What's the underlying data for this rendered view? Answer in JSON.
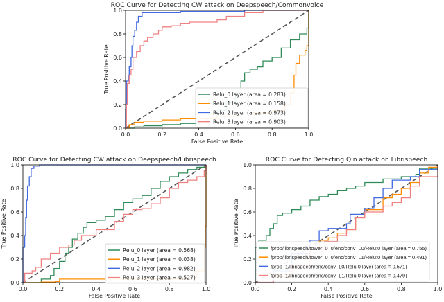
{
  "chart_data": [
    {
      "type": "line",
      "title": "ROC Curve for Detecting CW attack on Deepspeech/Commonvoice",
      "xlabel": "False Positive Rate",
      "ylabel": "True Positive Rate",
      "xlim": [
        0,
        1
      ],
      "ylim": [
        0,
        1
      ],
      "xticks": [
        "0.0",
        "0.2",
        "0.4",
        "0.6",
        "0.8",
        "1.0"
      ],
      "yticks": [
        "0.0",
        "0.2",
        "0.4",
        "0.6",
        "0.8",
        "1.0"
      ],
      "legend_position": "bottom-right",
      "series": [
        {
          "name": "Relu_0 layer (area = 0.283)",
          "color": "#2e8b57",
          "points": [
            [
              0,
              0
            ],
            [
              0.05,
              0.01
            ],
            [
              0.1,
              0.02
            ],
            [
              0.2,
              0.03
            ],
            [
              0.3,
              0.04
            ],
            [
              0.4,
              0.06
            ],
            [
              0.45,
              0.08
            ],
            [
              0.5,
              0.15
            ],
            [
              0.55,
              0.22
            ],
            [
              0.6,
              0.3
            ],
            [
              0.63,
              0.4
            ],
            [
              0.65,
              0.47
            ],
            [
              0.68,
              0.5
            ],
            [
              0.72,
              0.52
            ],
            [
              0.75,
              0.57
            ],
            [
              0.8,
              0.6
            ],
            [
              0.85,
              0.68
            ],
            [
              0.9,
              0.75
            ],
            [
              0.95,
              0.8
            ],
            [
              0.99,
              0.85
            ],
            [
              1,
              1
            ]
          ]
        },
        {
          "name": "Relu_1 layer (area = 0.158)",
          "color": "#ff8c00",
          "points": [
            [
              0,
              0
            ],
            [
              0.02,
              0.03
            ],
            [
              0.05,
              0.05
            ],
            [
              0.1,
              0.06
            ],
            [
              0.2,
              0.07
            ],
            [
              0.3,
              0.08
            ],
            [
              0.5,
              0.1
            ],
            [
              0.6,
              0.12
            ],
            [
              0.7,
              0.13
            ],
            [
              0.8,
              0.15
            ],
            [
              0.87,
              0.2
            ],
            [
              0.9,
              0.3
            ],
            [
              0.92,
              0.45
            ],
            [
              0.93,
              0.55
            ],
            [
              0.95,
              0.62
            ],
            [
              0.98,
              0.66
            ],
            [
              0.99,
              0.7
            ],
            [
              1,
              1
            ]
          ]
        },
        {
          "name": "Relu_2 layer (area = 0.973)",
          "color": "#4169e1",
          "points": [
            [
              0,
              0
            ],
            [
              0,
              0.16
            ],
            [
              0.005,
              0.4
            ],
            [
              0.015,
              0.45
            ],
            [
              0.02,
              0.52
            ],
            [
              0.03,
              0.6
            ],
            [
              0.035,
              0.7
            ],
            [
              0.04,
              0.78
            ],
            [
              0.05,
              0.83
            ],
            [
              0.06,
              0.9
            ],
            [
              0.07,
              0.95
            ],
            [
              0.09,
              0.98
            ],
            [
              0.3,
              0.99
            ],
            [
              0.6,
              0.99
            ],
            [
              0.65,
              1
            ],
            [
              1,
              1
            ]
          ]
        },
        {
          "name": "Relu_3 layer (area = 0.903)",
          "color": "#f08080",
          "points": [
            [
              0,
              0
            ],
            [
              0.005,
              0.2
            ],
            [
              0.01,
              0.38
            ],
            [
              0.02,
              0.45
            ],
            [
              0.03,
              0.5
            ],
            [
              0.04,
              0.6
            ],
            [
              0.06,
              0.65
            ],
            [
              0.08,
              0.7
            ],
            [
              0.1,
              0.74
            ],
            [
              0.12,
              0.77
            ],
            [
              0.15,
              0.8
            ],
            [
              0.18,
              0.83
            ],
            [
              0.2,
              0.86
            ],
            [
              0.25,
              0.87
            ],
            [
              0.3,
              0.89
            ],
            [
              0.35,
              0.9
            ],
            [
              0.5,
              0.92
            ],
            [
              0.55,
              0.95
            ],
            [
              0.65,
              0.98
            ],
            [
              0.75,
              1
            ],
            [
              1,
              1
            ]
          ]
        }
      ]
    },
    {
      "type": "line",
      "title": "ROC Curve for Detecting CW attack on Deepspeech/Librispeech",
      "xlabel": "False Positive Rate",
      "ylabel": "True Positive Rate",
      "xlim": [
        0,
        1
      ],
      "ylim": [
        0,
        1
      ],
      "xticks": [
        "0.0",
        "0.2",
        "0.4",
        "0.6",
        "0.8",
        "1.0"
      ],
      "yticks": [
        "0.0",
        "0.2",
        "0.4",
        "0.6",
        "0.8",
        "1.0"
      ],
      "legend_position": "bottom-right",
      "series": [
        {
          "name": "Relu_0 layer (area = 0.568)",
          "color": "#2e8b57",
          "points": [
            [
              0,
              0
            ],
            [
              0.07,
              0
            ],
            [
              0.1,
              0.03
            ],
            [
              0.15,
              0.06
            ],
            [
              0.17,
              0.12
            ],
            [
              0.2,
              0.18
            ],
            [
              0.23,
              0.25
            ],
            [
              0.25,
              0.3
            ],
            [
              0.27,
              0.37
            ],
            [
              0.3,
              0.42
            ],
            [
              0.33,
              0.47
            ],
            [
              0.35,
              0.51
            ],
            [
              0.4,
              0.53
            ],
            [
              0.45,
              0.56
            ],
            [
              0.5,
              0.62
            ],
            [
              0.55,
              0.68
            ],
            [
              0.6,
              0.71
            ],
            [
              0.65,
              0.74
            ],
            [
              0.7,
              0.8
            ],
            [
              0.75,
              0.86
            ],
            [
              0.8,
              0.9
            ],
            [
              0.85,
              0.93
            ],
            [
              0.9,
              0.96
            ],
            [
              0.95,
              0.98
            ],
            [
              1,
              1
            ]
          ]
        },
        {
          "name": "Relu_1 layer (area = 0.038)",
          "color": "#ff8c00",
          "points": [
            [
              0,
              0
            ],
            [
              0.1,
              0.005
            ],
            [
              0.18,
              0.01
            ],
            [
              0.2,
              0.03
            ],
            [
              0.5,
              0.03
            ],
            [
              0.9,
              0.04
            ],
            [
              0.95,
              0.1
            ],
            [
              0.99,
              0.3
            ],
            [
              0.995,
              0.48
            ],
            [
              1,
              1
            ]
          ]
        },
        {
          "name": "Relu_2 layer (area = 0.982)",
          "color": "#4169e1",
          "points": [
            [
              0,
              0
            ],
            [
              0,
              0.3
            ],
            [
              0.01,
              0.4
            ],
            [
              0.015,
              0.55
            ],
            [
              0.02,
              0.7
            ],
            [
              0.025,
              0.82
            ],
            [
              0.035,
              0.9
            ],
            [
              0.045,
              0.97
            ],
            [
              0.06,
              0.99
            ],
            [
              0.09,
              1
            ],
            [
              1,
              1
            ]
          ]
        },
        {
          "name": "Relu_3 layer (area = 0.527)",
          "color": "#f08080",
          "points": [
            [
              0,
              0
            ],
            [
              0.01,
              0.08
            ],
            [
              0.05,
              0.1
            ],
            [
              0.07,
              0.13
            ],
            [
              0.1,
              0.2
            ],
            [
              0.15,
              0.25
            ],
            [
              0.2,
              0.3
            ],
            [
              0.25,
              0.32
            ],
            [
              0.28,
              0.36
            ],
            [
              0.32,
              0.4
            ],
            [
              0.4,
              0.45
            ],
            [
              0.5,
              0.52
            ],
            [
              0.55,
              0.58
            ],
            [
              0.6,
              0.62
            ],
            [
              0.65,
              0.63
            ],
            [
              0.7,
              0.67
            ],
            [
              0.75,
              0.72
            ],
            [
              0.8,
              0.8
            ],
            [
              0.85,
              0.85
            ],
            [
              0.9,
              0.87
            ],
            [
              0.95,
              0.9
            ],
            [
              0.99,
              0.95
            ],
            [
              1,
              1
            ]
          ]
        }
      ]
    },
    {
      "type": "line",
      "title": "ROC Curve for Detecting Qin attack on Librispeech",
      "xlabel": "False Positive Rate",
      "ylabel": "True Positive Rate",
      "xlim": [
        0,
        1
      ],
      "ylim": [
        0,
        1
      ],
      "xticks": [
        "0.0",
        "0.2",
        "0.4",
        "0.6",
        "0.8",
        "1.0"
      ],
      "yticks": [
        "0.0",
        "0.2",
        "0.4",
        "0.6",
        "0.8",
        "1.0"
      ],
      "legend_position": "bottom",
      "series": [
        {
          "name": "fprop/librispeech/tower_0_0/enc/conv_L0/Relu:0 layer (area = 0.755)",
          "color": "#2e8b57",
          "points": [
            [
              0,
              0
            ],
            [
              0,
              0.3
            ],
            [
              0.02,
              0.36
            ],
            [
              0.06,
              0.4
            ],
            [
              0.08,
              0.46
            ],
            [
              0.1,
              0.5
            ],
            [
              0.12,
              0.57
            ],
            [
              0.15,
              0.59
            ],
            [
              0.2,
              0.62
            ],
            [
              0.25,
              0.65
            ],
            [
              0.3,
              0.7
            ],
            [
              0.35,
              0.73
            ],
            [
              0.4,
              0.75
            ],
            [
              0.45,
              0.78
            ],
            [
              0.5,
              0.8
            ],
            [
              0.55,
              0.82
            ],
            [
              0.6,
              0.85
            ],
            [
              0.7,
              0.88
            ],
            [
              0.8,
              0.9
            ],
            [
              0.88,
              0.92
            ],
            [
              0.9,
              0.97
            ],
            [
              1,
              1
            ]
          ]
        },
        {
          "name": "fprop/librispeech/tower_0_0/enc/conv_L1/Relu:0 layer (area = 0.491)",
          "color": "#ff8c00",
          "points": [
            [
              0,
              0
            ],
            [
              0.1,
              0.05
            ],
            [
              0.2,
              0.15
            ],
            [
              0.3,
              0.28
            ],
            [
              0.35,
              0.36
            ],
            [
              0.4,
              0.38
            ],
            [
              0.45,
              0.42
            ],
            [
              0.5,
              0.45
            ],
            [
              0.55,
              0.55
            ],
            [
              0.6,
              0.62
            ],
            [
              0.7,
              0.72
            ],
            [
              0.75,
              0.75
            ],
            [
              0.8,
              0.8
            ],
            [
              0.85,
              0.85
            ],
            [
              0.9,
              0.93
            ],
            [
              0.95,
              0.98
            ],
            [
              1,
              1
            ]
          ]
        },
        {
          "name": "fprop_1/librispeech/enc/conv_L0/Relu:0 layer (area = 0.571)",
          "color": "#4169e1",
          "points": [
            [
              0,
              0
            ],
            [
              0.1,
              0.1
            ],
            [
              0.2,
              0.25
            ],
            [
              0.3,
              0.36
            ],
            [
              0.35,
              0.44
            ],
            [
              0.4,
              0.46
            ],
            [
              0.5,
              0.5
            ],
            [
              0.52,
              0.58
            ],
            [
              0.6,
              0.63
            ],
            [
              0.65,
              0.72
            ],
            [
              0.7,
              0.8
            ],
            [
              0.75,
              0.87
            ],
            [
              0.85,
              0.9
            ],
            [
              0.9,
              0.96
            ],
            [
              1,
              1
            ]
          ]
        },
        {
          "name": "fprop_1/librispeech/enc/conv_L1/Relu:0 layer (area = 0.479)",
          "color": "#f08080",
          "points": [
            [
              0,
              0
            ],
            [
              0.1,
              0.07
            ],
            [
              0.2,
              0.15
            ],
            [
              0.3,
              0.28
            ],
            [
              0.38,
              0.35
            ],
            [
              0.45,
              0.4
            ],
            [
              0.5,
              0.45
            ],
            [
              0.55,
              0.55
            ],
            [
              0.6,
              0.6
            ],
            [
              0.7,
              0.65
            ],
            [
              0.75,
              0.68
            ],
            [
              0.8,
              0.72
            ],
            [
              0.85,
              0.82
            ],
            [
              0.9,
              0.9
            ],
            [
              1,
              1
            ]
          ]
        }
      ]
    }
  ]
}
